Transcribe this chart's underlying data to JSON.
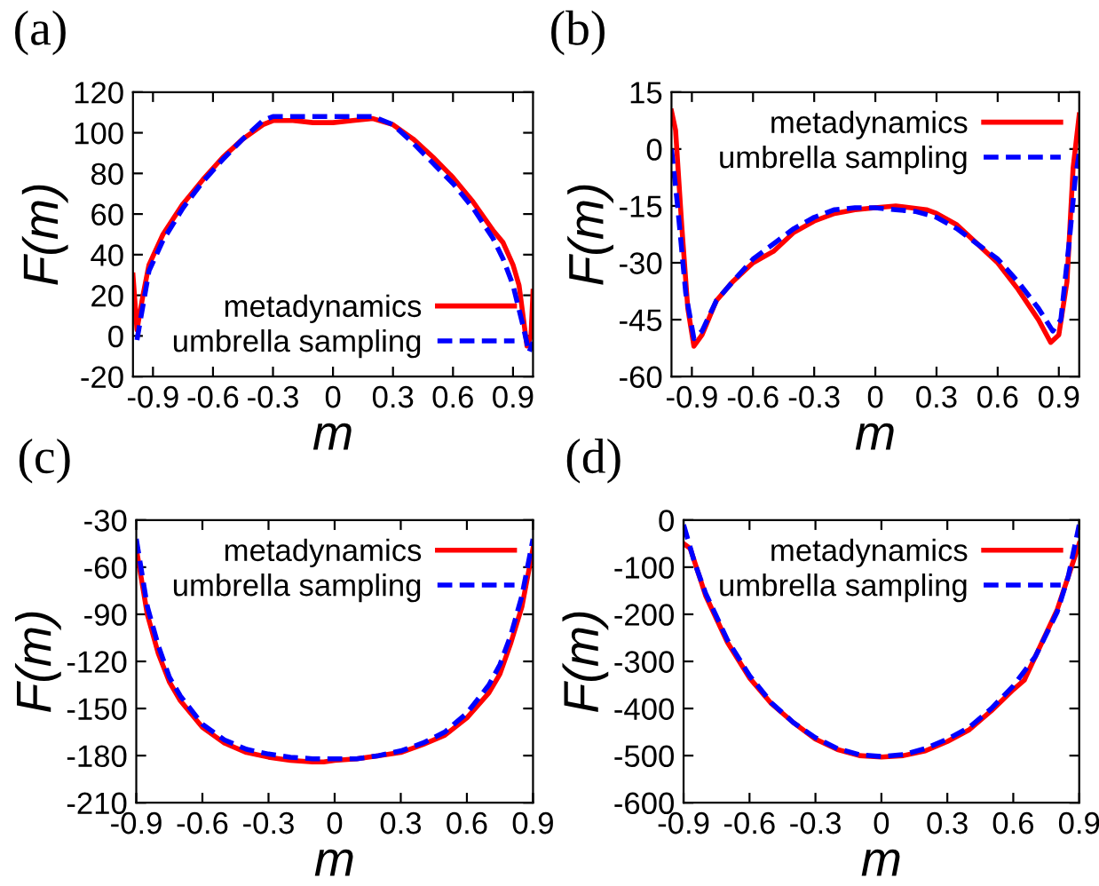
{
  "chart_data": [
    {
      "type": "line",
      "title": "(a)",
      "xlabel": "m",
      "ylabel": "F(m)",
      "xlim": [
        -1,
        1
      ],
      "xticks": [
        -0.9,
        -0.6,
        -0.3,
        0,
        0.3,
        0.6,
        0.9
      ],
      "ylim": [
        -20,
        120
      ],
      "yticks": [
        -20,
        0,
        20,
        40,
        60,
        80,
        100,
        120
      ],
      "legend": "bottom right",
      "grid": false,
      "series": [
        {
          "name": "metadynamics",
          "color": "#ff0000",
          "line_style": "solid",
          "x": [
            -1,
            -0.98,
            -0.95,
            -0.92,
            -0.85,
            -0.75,
            -0.65,
            -0.55,
            -0.45,
            -0.35,
            -0.3,
            -0.2,
            -0.1,
            0,
            0.1,
            0.2,
            0.3,
            0.4,
            0.5,
            0.6,
            0.7,
            0.8,
            0.85,
            0.9,
            0.93,
            0.97,
            0.99,
            1
          ],
          "values": [
            30,
            3,
            20,
            35,
            50,
            65,
            77,
            88,
            97,
            104,
            106,
            106,
            105,
            105,
            106,
            107,
            104,
            97,
            88,
            78,
            66,
            52,
            46,
            35,
            25,
            -5,
            0,
            22
          ]
        },
        {
          "name": "umbrella sampling",
          "color": "#0000ff",
          "line_style": "dashed",
          "x": [
            -0.98,
            -0.95,
            -0.92,
            -0.85,
            -0.75,
            -0.65,
            -0.55,
            -0.45,
            -0.35,
            -0.3,
            0,
            0.2,
            0.3,
            0.4,
            0.5,
            0.6,
            0.7,
            0.8,
            0.85,
            0.9,
            0.95,
            0.98,
            1
          ],
          "values": [
            -2,
            15,
            32,
            47,
            63,
            76,
            87,
            97,
            106,
            108,
            108,
            108,
            104,
            95,
            85,
            75,
            63,
            48,
            38,
            25,
            5,
            -8,
            -3
          ]
        }
      ]
    },
    {
      "type": "line",
      "title": "(b)",
      "xlabel": "m",
      "ylabel": "F(m)",
      "xlim": [
        -1,
        1
      ],
      "xticks": [
        -0.9,
        -0.6,
        -0.3,
        0,
        0.3,
        0.6,
        0.9
      ],
      "ylim": [
        -60,
        15
      ],
      "yticks": [
        -60,
        -45,
        -30,
        -15,
        0,
        15
      ],
      "legend": "top right",
      "grid": false,
      "series": [
        {
          "name": "metadynamics",
          "color": "#ff0000",
          "line_style": "solid",
          "x": [
            -1,
            -0.98,
            -0.95,
            -0.92,
            -0.89,
            -0.85,
            -0.78,
            -0.7,
            -0.6,
            -0.5,
            -0.4,
            -0.3,
            -0.2,
            -0.1,
            0,
            0.1,
            0.25,
            0.3,
            0.4,
            0.5,
            0.6,
            0.7,
            0.8,
            0.86,
            0.9,
            0.94,
            0.97,
            1
          ],
          "values": [
            10,
            5,
            -20,
            -42,
            -52,
            -49,
            -40,
            -35,
            -30,
            -27,
            -22,
            -19,
            -17,
            -16,
            -15.5,
            -15,
            -16,
            -17,
            -20,
            -25,
            -30,
            -37,
            -45,
            -51,
            -49,
            -35,
            -5,
            9
          ]
        },
        {
          "name": "umbrella sampling",
          "color": "#0000ff",
          "line_style": "dashed",
          "x": [
            -1,
            -0.97,
            -0.93,
            -0.89,
            -0.85,
            -0.78,
            -0.7,
            -0.6,
            -0.5,
            -0.4,
            -0.3,
            -0.2,
            -0.1,
            0,
            0.1,
            0.2,
            0.3,
            0.4,
            0.5,
            0.6,
            0.7,
            0.8,
            0.87,
            0.91,
            0.95,
            0.98,
            1
          ],
          "values": [
            0,
            -15,
            -38,
            -50,
            -48,
            -40,
            -35,
            -29,
            -25,
            -21,
            -18,
            -16,
            -15.5,
            -15.5,
            -16,
            -16.5,
            -18,
            -21,
            -25,
            -29,
            -35,
            -42,
            -48,
            -45,
            -25,
            -8,
            -1
          ]
        }
      ]
    },
    {
      "type": "line",
      "title": "(c)",
      "xlabel": "m",
      "ylabel": "F(m)",
      "xlim": [
        -0.9,
        0.9
      ],
      "xticks": [
        -0.9,
        -0.6,
        -0.3,
        0,
        0.3,
        0.6,
        0.9
      ],
      "ylim": [
        -210,
        -30
      ],
      "yticks": [
        -210,
        -180,
        -150,
        -120,
        -90,
        -60,
        -30
      ],
      "legend": "top right",
      "grid": false,
      "series": [
        {
          "name": "metadynamics",
          "color": "#ff0000",
          "line_style": "solid",
          "x": [
            -0.9,
            -0.85,
            -0.8,
            -0.75,
            -0.7,
            -0.6,
            -0.5,
            -0.4,
            -0.3,
            -0.2,
            -0.1,
            -0.05,
            0,
            0.1,
            0.2,
            0.3,
            0.4,
            0.5,
            0.6,
            0.7,
            0.75,
            0.8,
            0.85,
            0.9
          ],
          "values": [
            -48,
            -90,
            -115,
            -133,
            -145,
            -162,
            -172,
            -178,
            -181,
            -183,
            -184,
            -184,
            -183,
            -182,
            -180,
            -178,
            -173,
            -167,
            -156,
            -140,
            -128,
            -108,
            -85,
            -48
          ]
        },
        {
          "name": "umbrella sampling",
          "color": "#0000ff",
          "line_style": "dashed",
          "x": [
            -0.9,
            -0.85,
            -0.8,
            -0.75,
            -0.7,
            -0.6,
            -0.5,
            -0.4,
            -0.3,
            -0.2,
            -0.1,
            0,
            0.1,
            0.2,
            0.3,
            0.4,
            0.5,
            0.6,
            0.7,
            0.75,
            0.8,
            0.85,
            0.9
          ],
          "values": [
            -42,
            -85,
            -110,
            -130,
            -142,
            -160,
            -170,
            -176,
            -179,
            -181,
            -182,
            -182,
            -182,
            -180,
            -177,
            -172,
            -165,
            -153,
            -135,
            -122,
            -103,
            -78,
            -42
          ]
        }
      ]
    },
    {
      "type": "line",
      "title": "(d)",
      "xlabel": "m",
      "ylabel": "F(m)",
      "xlim": [
        -0.9,
        0.9
      ],
      "xticks": [
        -0.9,
        -0.6,
        -0.3,
        0,
        0.3,
        0.6,
        0.9
      ],
      "ylim": [
        -600,
        0
      ],
      "yticks": [
        -600,
        -500,
        -400,
        -300,
        -200,
        -100,
        0
      ],
      "legend": "top right",
      "grid": false,
      "series": [
        {
          "name": "metadynamics",
          "color": "#ff0000",
          "line_style": "solid",
          "x": [
            -0.9,
            -0.87,
            -0.8,
            -0.7,
            -0.6,
            -0.5,
            -0.4,
            -0.3,
            -0.2,
            -0.1,
            0,
            0.1,
            0.2,
            0.3,
            0.4,
            0.5,
            0.6,
            0.65,
            0.7,
            0.8,
            0.85,
            0.9
          ],
          "values": [
            -50,
            -60,
            -160,
            -260,
            -335,
            -390,
            -430,
            -465,
            -487,
            -500,
            -503,
            -500,
            -490,
            -470,
            -445,
            -405,
            -360,
            -340,
            -290,
            -190,
            -120,
            -50
          ]
        },
        {
          "name": "umbrella sampling",
          "color": "#0000ff",
          "line_style": "dashed",
          "x": [
            -0.9,
            -0.85,
            -0.8,
            -0.7,
            -0.6,
            -0.5,
            -0.4,
            -0.3,
            -0.2,
            -0.1,
            0,
            0.1,
            0.2,
            0.3,
            0.4,
            0.5,
            0.6,
            0.7,
            0.8,
            0.85,
            0.9
          ],
          "values": [
            -10,
            -90,
            -155,
            -255,
            -330,
            -388,
            -430,
            -462,
            -485,
            -498,
            -502,
            -498,
            -485,
            -465,
            -440,
            -400,
            -352,
            -290,
            -195,
            -120,
            -10
          ]
        }
      ]
    }
  ]
}
